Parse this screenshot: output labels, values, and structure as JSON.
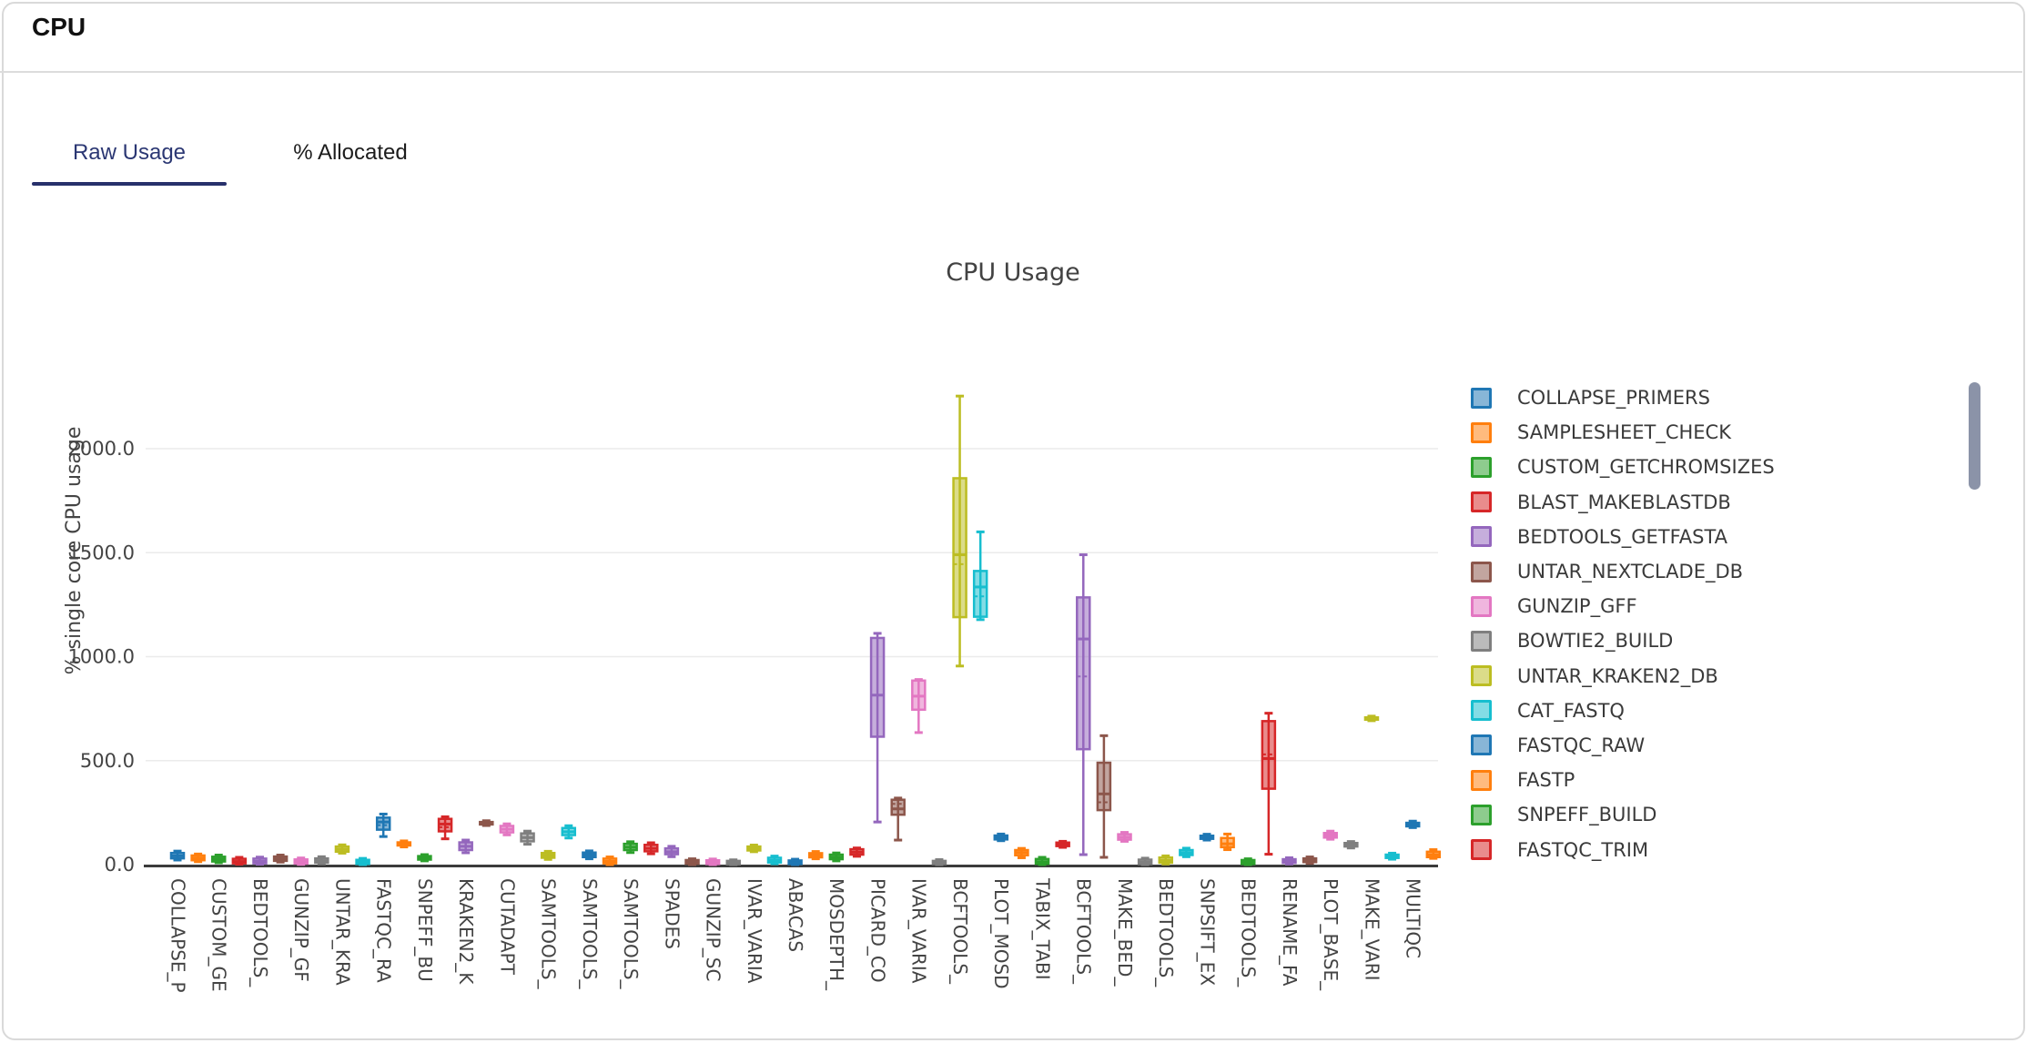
{
  "header": {
    "title": "CPU"
  },
  "tabs": [
    {
      "label": "Raw Usage",
      "active": true
    },
    {
      "label": "% Allocated",
      "active": false
    }
  ],
  "colors": {
    "accent_tab": "#2b3773",
    "tab_underline": "#27306b",
    "grid": "#ebebeb",
    "axis_line": "#3b3b3b",
    "tick_text": "#444444",
    "scrollbar_thumb": "#8b93a8",
    "palette": [
      "#1f77b4",
      "#ff7f0e",
      "#2ca02c",
      "#d62728",
      "#9467bd",
      "#8c564b",
      "#e377c2",
      "#7f7f7f",
      "#bcbd22",
      "#17becf"
    ]
  },
  "legend": {
    "items": [
      {
        "label": "COLLAPSE_PRIMERS",
        "color_index": 0
      },
      {
        "label": "SAMPLESHEET_CHECK",
        "color_index": 1
      },
      {
        "label": "CUSTOM_GETCHROMSIZES",
        "color_index": 2
      },
      {
        "label": "BLAST_MAKEBLASTDB",
        "color_index": 3
      },
      {
        "label": "BEDTOOLS_GETFASTA",
        "color_index": 4
      },
      {
        "label": "UNTAR_NEXTCLADE_DB",
        "color_index": 5
      },
      {
        "label": "GUNZIP_GFF",
        "color_index": 6
      },
      {
        "label": "BOWTIE2_BUILD",
        "color_index": 7
      },
      {
        "label": "UNTAR_KRAKEN2_DB",
        "color_index": 8
      },
      {
        "label": "CAT_FASTQ",
        "color_index": 9
      },
      {
        "label": "FASTQC_RAW",
        "color_index": 0
      },
      {
        "label": "FASTP",
        "color_index": 1
      },
      {
        "label": "SNPEFF_BUILD",
        "color_index": 2
      },
      {
        "label": "FASTQC_TRIM",
        "color_index": 3
      }
    ],
    "scrollbar_visible": true
  },
  "chart_data": {
    "type": "box",
    "title": "CPU Usage",
    "ylabel": "% single core CPU usage",
    "xlabel": "",
    "grid": true,
    "legend_position": "right",
    "ylim": [
      0,
      2350
    ],
    "yticks": [
      0,
      500,
      1000,
      1500,
      2000
    ],
    "ytick_labels": [
      "0.0",
      "500.0",
      "1000.0",
      "1500.0",
      "2000.0"
    ],
    "x_tick_labels": [
      "COLLAPSE_P",
      "CUSTOM_GE",
      "BEDTOOLS_",
      "GUNZIP_GF",
      "UNTAR_KRA",
      "FASTQC_RA",
      "SNPEFF_BU",
      "KRAKEN2_K",
      "CUTADAPT",
      "SAMTOOLS_",
      "SAMTOOLS_",
      "SAMTOOLS_",
      "SPADES",
      "GUNZIP_SC",
      "IVAR_VARIA",
      "ABACAS",
      "MOSDEPTH_",
      "PICARD_CO",
      "IVAR_VARIA",
      "BCFTOOLS_",
      "PLOT_MOSD",
      "TABIX_TABI",
      "BCFTOOLS_",
      "MAKE_BED_",
      "BEDTOOLS_",
      "SNPSIFT_EX",
      "BEDTOOLS_",
      "RENAME_FA",
      "PLOT_BASE_",
      "MAKE_VARI",
      "MULTIQC"
    ],
    "x_label_every": 2,
    "boxes": [
      {
        "c": 0,
        "lo": 22,
        "q1": 30,
        "med": 42,
        "q3": 56,
        "hi": 65
      },
      {
        "c": 1,
        "lo": 14,
        "q1": 21,
        "med": 32,
        "q3": 44,
        "hi": 51
      },
      {
        "c": 2,
        "lo": 9,
        "q1": 15,
        "med": 26,
        "q3": 38,
        "hi": 46
      },
      {
        "c": 3,
        "lo": 2,
        "q1": 6,
        "med": 15,
        "q3": 28,
        "hi": 35
      },
      {
        "c": 4,
        "lo": 2,
        "q1": 6,
        "med": 16,
        "q3": 29,
        "hi": 36
      },
      {
        "c": 5,
        "lo": 12,
        "q1": 18,
        "med": 28,
        "q3": 39,
        "hi": 46
      },
      {
        "c": 6,
        "lo": 1,
        "q1": 5,
        "med": 13,
        "q3": 25,
        "hi": 32
      },
      {
        "c": 7,
        "lo": 4,
        "q1": 9,
        "med": 18,
        "q3": 30,
        "hi": 38
      },
      {
        "c": 8,
        "lo": 55,
        "q1": 62,
        "med": 74,
        "q3": 87,
        "hi": 95
      },
      {
        "c": 9,
        "lo": 0,
        "q1": 3,
        "med": 12,
        "q3": 23,
        "hi": 30
      },
      {
        "c": 0,
        "lo": 135,
        "q1": 168,
        "med": 205,
        "q3": 226,
        "hi": 243,
        "mean": 190
      },
      {
        "c": 1,
        "lo": 85,
        "q1": 92,
        "med": 99,
        "q3": 107,
        "hi": 114
      },
      {
        "c": 2,
        "lo": 18,
        "q1": 24,
        "med": 32,
        "q3": 41,
        "hi": 48
      },
      {
        "c": 3,
        "lo": 124,
        "q1": 160,
        "med": 195,
        "q3": 220,
        "hi": 230,
        "mean": 180
      },
      {
        "c": 4,
        "lo": 57,
        "q1": 70,
        "med": 88,
        "q3": 107,
        "hi": 118
      },
      {
        "c": 5,
        "lo": 188,
        "q1": 193,
        "med": 199,
        "q3": 205,
        "hi": 211
      },
      {
        "c": 6,
        "lo": 143,
        "q1": 155,
        "med": 170,
        "q3": 186,
        "hi": 196
      },
      {
        "c": 7,
        "lo": 98,
        "q1": 112,
        "med": 130,
        "q3": 150,
        "hi": 161
      },
      {
        "c": 8,
        "lo": 25,
        "q1": 33,
        "med": 44,
        "q3": 56,
        "hi": 64
      },
      {
        "c": 9,
        "lo": 128,
        "q1": 142,
        "med": 158,
        "q3": 176,
        "hi": 187
      },
      {
        "c": 0,
        "lo": 28,
        "q1": 36,
        "med": 46,
        "q3": 58,
        "hi": 66
      },
      {
        "c": 1,
        "lo": 0,
        "q1": 6,
        "med": 16,
        "q3": 29,
        "hi": 37
      },
      {
        "c": 2,
        "lo": 58,
        "q1": 70,
        "med": 84,
        "q3": 100,
        "hi": 110
      },
      {
        "c": 3,
        "lo": 52,
        "q1": 64,
        "med": 78,
        "q3": 95,
        "hi": 105
      },
      {
        "c": 4,
        "lo": 38,
        "q1": 50,
        "med": 62,
        "q3": 78,
        "hi": 88
      },
      {
        "c": 5,
        "lo": 0,
        "q1": 4,
        "med": 12,
        "q3": 22,
        "hi": 28
      },
      {
        "c": 6,
        "lo": 0,
        "q1": 3,
        "med": 11,
        "q3": 21,
        "hi": 27
      },
      {
        "c": 7,
        "lo": 0,
        "q1": 2,
        "med": 9,
        "q3": 18,
        "hi": 23
      },
      {
        "c": 8,
        "lo": 62,
        "q1": 68,
        "med": 77,
        "q3": 87,
        "hi": 94
      },
      {
        "c": 9,
        "lo": 4,
        "q1": 10,
        "med": 20,
        "q3": 33,
        "hi": 41
      },
      {
        "c": 0,
        "lo": 0,
        "q1": 3,
        "med": 10,
        "q3": 20,
        "hi": 26
      },
      {
        "c": 1,
        "lo": 28,
        "q1": 35,
        "med": 44,
        "q3": 55,
        "hi": 63
      },
      {
        "c": 2,
        "lo": 18,
        "q1": 26,
        "med": 36,
        "q3": 48,
        "hi": 56
      },
      {
        "c": 3,
        "lo": 40,
        "q1": 48,
        "med": 60,
        "q3": 74,
        "hi": 80
      },
      {
        "c": 4,
        "lo": 205,
        "q1": 615,
        "med": 815,
        "q3": 1090,
        "hi": 1112
      },
      {
        "c": 5,
        "lo": 118,
        "q1": 240,
        "med": 268,
        "q3": 312,
        "hi": 320,
        "mean": 292
      },
      {
        "c": 6,
        "lo": 635,
        "q1": 745,
        "med": 810,
        "q3": 885,
        "hi": 890
      },
      {
        "c": 7,
        "lo": 0,
        "q1": 3,
        "med": 10,
        "q3": 18,
        "hi": 24
      },
      {
        "c": 8,
        "lo": 955,
        "q1": 1190,
        "med": 1490,
        "q3": 1858,
        "hi": 2253,
        "mean": 1445
      },
      {
        "c": 9,
        "lo": 1178,
        "q1": 1192,
        "med": 1335,
        "q3": 1412,
        "hi": 1600,
        "mean": 1290
      },
      {
        "c": 0,
        "lo": 115,
        "q1": 121,
        "med": 130,
        "q3": 140,
        "hi": 147
      },
      {
        "c": 1,
        "lo": 33,
        "q1": 45,
        "med": 58,
        "q3": 70,
        "hi": 78
      },
      {
        "c": 2,
        "lo": 0,
        "q1": 4,
        "med": 14,
        "q3": 27,
        "hi": 35
      },
      {
        "c": 3,
        "lo": 83,
        "q1": 89,
        "med": 97,
        "q3": 106,
        "hi": 112
      },
      {
        "c": 4,
        "lo": 48,
        "q1": 555,
        "med": 1085,
        "q3": 1285,
        "hi": 1490,
        "mean": 905
      },
      {
        "c": 5,
        "lo": 35,
        "q1": 262,
        "med": 340,
        "q3": 490,
        "hi": 620,
        "mean": 300
      },
      {
        "c": 6,
        "lo": 112,
        "q1": 120,
        "med": 132,
        "q3": 146,
        "hi": 155
      },
      {
        "c": 7,
        "lo": 0,
        "q1": 3,
        "med": 12,
        "q3": 24,
        "hi": 31
      },
      {
        "c": 8,
        "lo": 3,
        "q1": 9,
        "med": 20,
        "q3": 34,
        "hi": 42
      },
      {
        "c": 9,
        "lo": 38,
        "q1": 46,
        "med": 57,
        "q3": 70,
        "hi": 79
      },
      {
        "c": 0,
        "lo": 118,
        "q1": 124,
        "med": 131,
        "q3": 139,
        "hi": 146
      },
      {
        "c": 1,
        "lo": 72,
        "q1": 84,
        "med": 100,
        "q3": 128,
        "hi": 147
      },
      {
        "c": 2,
        "lo": 0,
        "q1": 3,
        "med": 11,
        "q3": 22,
        "hi": 28
      },
      {
        "c": 3,
        "lo": 50,
        "q1": 365,
        "med": 510,
        "q3": 690,
        "hi": 728,
        "mean": 530
      },
      {
        "c": 4,
        "lo": 3,
        "q1": 8,
        "med": 16,
        "q3": 26,
        "hi": 33
      },
      {
        "c": 5,
        "lo": 6,
        "q1": 12,
        "med": 20,
        "q3": 30,
        "hi": 37
      },
      {
        "c": 6,
        "lo": 122,
        "q1": 130,
        "med": 140,
        "q3": 152,
        "hi": 161
      },
      {
        "c": 7,
        "lo": 80,
        "q1": 87,
        "med": 95,
        "q3": 104,
        "hi": 111
      },
      {
        "c": 8,
        "lo": 692,
        "q1": 697,
        "med": 702,
        "q3": 708,
        "hi": 714
      },
      {
        "c": 9,
        "lo": 26,
        "q1": 32,
        "med": 40,
        "q3": 48,
        "hi": 55
      },
      {
        "c": 0,
        "lo": 178,
        "q1": 184,
        "med": 192,
        "q3": 201,
        "hi": 209
      },
      {
        "c": 1,
        "lo": 30,
        "q1": 36,
        "med": 48,
        "q3": 62,
        "hi": 72
      }
    ]
  }
}
